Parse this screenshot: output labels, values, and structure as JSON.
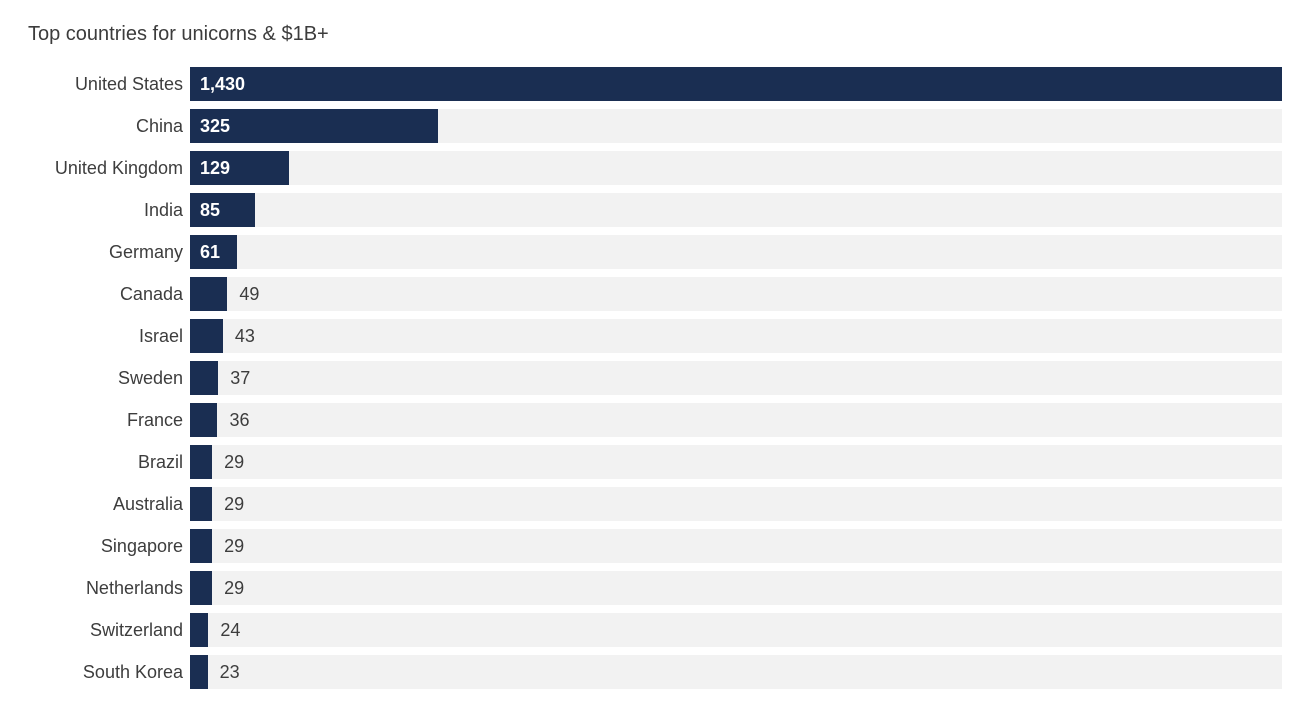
{
  "chart_data": {
    "type": "bar",
    "orientation": "horizontal",
    "title": "Top countries for unicorns & $1B+",
    "categories": [
      "United States",
      "China",
      "United Kingdom",
      "India",
      "Germany",
      "Canada",
      "Israel",
      "Sweden",
      "France",
      "Brazil",
      "Australia",
      "Singapore",
      "Netherlands",
      "Switzerland",
      "South Korea"
    ],
    "values": [
      1430,
      325,
      129,
      85,
      61,
      49,
      43,
      37,
      36,
      29,
      29,
      29,
      29,
      24,
      23
    ],
    "value_labels": [
      "1,430",
      "325",
      "129",
      "85",
      "61",
      "49",
      "43",
      "37",
      "36",
      "29",
      "29",
      "29",
      "29",
      "24",
      "23"
    ],
    "xlim": [
      0,
      1430
    ],
    "grid": false,
    "legend": false,
    "colors": {
      "bar": "#1a2e52",
      "track": "#f2f2f2",
      "value_inside": "#ffffff",
      "value_outside": "#3d3d3d",
      "label": "#3d3d3d",
      "background": "#ffffff"
    }
  }
}
